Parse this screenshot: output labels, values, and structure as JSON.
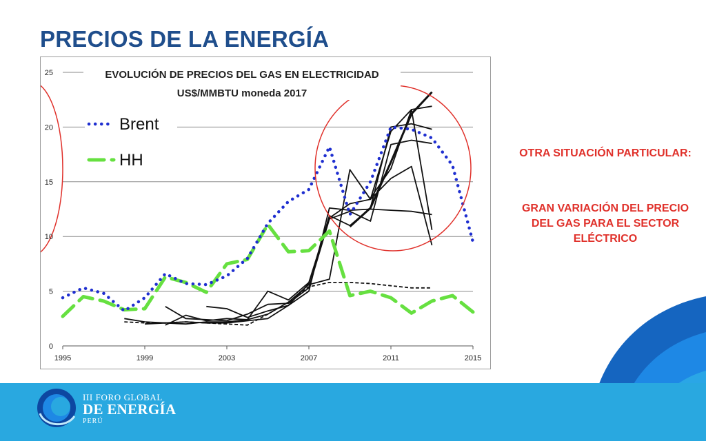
{
  "slide": {
    "title": "PRECIOS DE LA ENERGÍA",
    "note_heading": "OTRA SITUACIÓN PARTICULAR:",
    "note_body": "GRAN VARIACIÓN DEL PRECIO DEL GAS PARA EL SECTOR ELÉCTRICO"
  },
  "footer": {
    "logo_line1": "III FORO GLOBAL",
    "logo_line2": "DE ENERGÍA",
    "logo_line3": "PERÚ"
  },
  "colors": {
    "title": "#1f4e8c",
    "accent_red": "#e0312b",
    "brent": "#1f2fd0",
    "hh": "#66e040",
    "band": "#29a8e0",
    "swoosh_dark": "#1565c0"
  },
  "chart_data": {
    "type": "line",
    "title": "EVOLUCIÓN DE PRECIOS DEL GAS EN ELECTRICIDAD",
    "subtitle": "US$/MMBTU moneda 2017",
    "xlabel": "",
    "ylabel": "",
    "xlim": [
      1995,
      2015
    ],
    "ylim": [
      0,
      25
    ],
    "x_ticks": [
      1995,
      1999,
      2003,
      2007,
      2011,
      2015
    ],
    "y_ticks": [
      0,
      5,
      10,
      15,
      20,
      25
    ],
    "grid": "horizontal",
    "legend_position": "top-left",
    "series": [
      {
        "name": "Brent",
        "style": "dotted",
        "color": "#1f2fd0",
        "points": [
          [
            1995,
            4.4
          ],
          [
            1996,
            5.3
          ],
          [
            1997,
            4.8
          ],
          [
            1998,
            3.2
          ],
          [
            1999,
            4.4
          ],
          [
            2000,
            6.6
          ],
          [
            2001,
            5.7
          ],
          [
            2002,
            5.6
          ],
          [
            2003,
            6.4
          ],
          [
            2004,
            8.0
          ],
          [
            2005,
            11.2
          ],
          [
            2006,
            13.2
          ],
          [
            2007,
            14.3
          ],
          [
            2008,
            18.2
          ],
          [
            2009,
            12.0
          ],
          [
            2010,
            15.0
          ],
          [
            2011,
            20.0
          ],
          [
            2012,
            19.8
          ],
          [
            2013,
            19.0
          ],
          [
            2014,
            16.5
          ],
          [
            2015,
            9.5
          ]
        ]
      },
      {
        "name": "HH",
        "style": "dashed",
        "color": "#66e040",
        "points": [
          [
            1995,
            2.7
          ],
          [
            1996,
            4.5
          ],
          [
            1997,
            4.1
          ],
          [
            1998,
            3.3
          ],
          [
            1999,
            3.4
          ],
          [
            2000,
            6.3
          ],
          [
            2001,
            5.8
          ],
          [
            2002,
            4.9
          ],
          [
            2003,
            7.5
          ],
          [
            2004,
            7.9
          ],
          [
            2005,
            11.1
          ],
          [
            2006,
            8.6
          ],
          [
            2007,
            8.7
          ],
          [
            2008,
            10.5
          ],
          [
            2009,
            4.6
          ],
          [
            2010,
            5.0
          ],
          [
            2011,
            4.4
          ],
          [
            2012,
            3.0
          ],
          [
            2013,
            4.1
          ],
          [
            2014,
            4.6
          ],
          [
            2015,
            3.1
          ]
        ]
      },
      {
        "style": "thin-dashed",
        "color": "#111111",
        "points": [
          [
            1998,
            2.2
          ],
          [
            1999,
            2.1
          ],
          [
            2000,
            2.1
          ],
          [
            2001,
            2.2
          ],
          [
            2002,
            2.1
          ],
          [
            2003,
            2.0
          ],
          [
            2004,
            1.9
          ],
          [
            2005,
            2.9
          ],
          [
            2006,
            4.0
          ],
          [
            2007,
            5.4
          ],
          [
            2008,
            5.8
          ],
          [
            2009,
            5.8
          ],
          [
            2010,
            5.7
          ],
          [
            2011,
            5.5
          ],
          [
            2012,
            5.3
          ],
          [
            2013,
            5.3
          ]
        ]
      },
      {
        "style": "solid",
        "color": "#111111",
        "points": [
          [
            1998,
            2.5
          ],
          [
            1999,
            2.2
          ],
          [
            2000,
            2.1
          ],
          [
            2001,
            2.2
          ],
          [
            2002,
            2.1
          ],
          [
            2003,
            2.1
          ],
          [
            2004,
            2.3
          ],
          [
            2005,
            2.5
          ],
          [
            2006,
            3.7
          ],
          [
            2007,
            5.0
          ],
          [
            2008,
            12.6
          ],
          [
            2009,
            12.4
          ],
          [
            2010,
            12.5
          ],
          [
            2011,
            12.4
          ],
          [
            2012,
            12.3
          ],
          [
            2013,
            12.0
          ]
        ]
      },
      {
        "style": "solid",
        "color": "#111111",
        "points": [
          [
            1999,
            2.0
          ],
          [
            2000,
            2.1
          ],
          [
            2001,
            2.0
          ],
          [
            2002,
            2.2
          ],
          [
            2003,
            2.2
          ],
          [
            2004,
            2.4
          ],
          [
            2005,
            2.9
          ],
          [
            2006,
            4.0
          ],
          [
            2007,
            5.6
          ],
          [
            2008,
            6.1
          ],
          [
            2009,
            16.1
          ],
          [
            2010,
            13.4
          ],
          [
            2011,
            19.6
          ],
          [
            2012,
            21.6
          ],
          [
            2013,
            21.9
          ]
        ]
      },
      {
        "style": "solid",
        "color": "#111111",
        "points": [
          [
            2000,
            3.6
          ],
          [
            2001,
            2.5
          ],
          [
            2002,
            2.4
          ],
          [
            2003,
            2.3
          ],
          [
            2004,
            2.9
          ],
          [
            2005,
            3.8
          ],
          [
            2006,
            3.9
          ],
          [
            2007,
            5.3
          ],
          [
            2008,
            11.6
          ],
          [
            2009,
            12.3
          ],
          [
            2010,
            11.4
          ],
          [
            2011,
            18.4
          ],
          [
            2012,
            18.8
          ],
          [
            2013,
            18.5
          ]
        ]
      },
      {
        "style": "solid",
        "color": "#111111",
        "points": [
          [
            2000,
            1.9
          ],
          [
            2001,
            2.8
          ],
          [
            2002,
            2.3
          ],
          [
            2003,
            2.5
          ],
          [
            2004,
            2.4
          ],
          [
            2005,
            5.0
          ],
          [
            2006,
            4.2
          ],
          [
            2007,
            5.8
          ],
          [
            2008,
            11.7
          ],
          [
            2009,
            13.0
          ],
          [
            2010,
            13.4
          ],
          [
            2011,
            15.3
          ],
          [
            2012,
            16.4
          ],
          [
            2013,
            9.2
          ]
        ]
      },
      {
        "style": "solid",
        "color": "#111111",
        "points": [
          [
            2002,
            3.6
          ],
          [
            2003,
            3.4
          ],
          [
            2004,
            2.6
          ],
          [
            2005,
            3.2
          ],
          [
            2006,
            3.7
          ],
          [
            2007,
            5.7
          ],
          [
            2008,
            11.9
          ],
          [
            2009,
            11.0
          ],
          [
            2010,
            12.6
          ],
          [
            2011,
            20.0
          ],
          [
            2012,
            20.3
          ],
          [
            2013,
            19.8
          ]
        ]
      },
      {
        "style": "thick",
        "color": "#111111",
        "points": [
          [
            2009,
            10.9
          ],
          [
            2010,
            12.6
          ],
          [
            2011,
            16.8
          ],
          [
            2012,
            21.2
          ],
          [
            2013,
            23.2
          ]
        ]
      },
      {
        "style": "solid",
        "color": "#111111",
        "points": [
          [
            2010,
            13.5
          ],
          [
            2011,
            16.2
          ],
          [
            2012,
            21.6
          ],
          [
            2013,
            10.6
          ]
        ]
      }
    ]
  }
}
